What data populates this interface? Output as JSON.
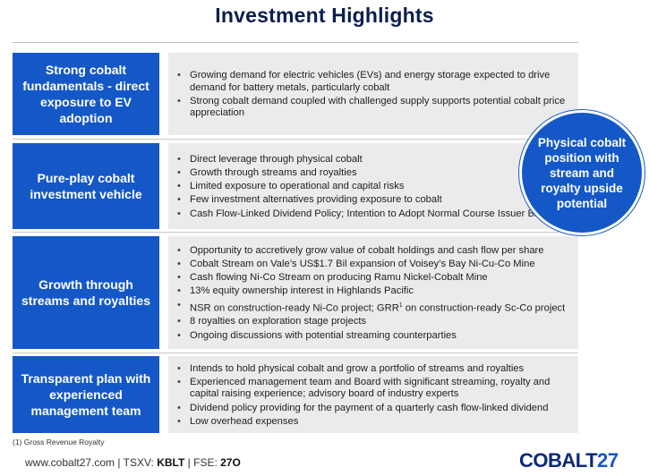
{
  "title": "Investment Highlights",
  "rows": [
    {
      "label": "Strong cobalt fundamentals - direct exposure to EV adoption",
      "bullets": [
        "Growing demand for electric vehicles (EVs) and energy storage expected to drive demand for battery metals, particularly cobalt",
        "Strong cobalt demand coupled with challenged supply supports potential cobalt price appreciation"
      ]
    },
    {
      "label": "Pure-play cobalt investment vehicle",
      "bullets": [
        "Direct leverage through physical cobalt",
        "Growth through streams and royalties",
        "Limited exposure to operational and capital risks",
        "Few investment alternatives providing exposure to cobalt",
        "Cash Flow-Linked Dividend Policy; Intention to Adopt Normal Course Issuer Bid"
      ]
    },
    {
      "label": "Growth through streams and royalties",
      "bullets": [
        "Opportunity to accretively grow value of cobalt holdings and cash flow per share",
        "Cobalt Stream on Vale’s US$1.7 Bil expansion of Voisey’s Bay Ni-Cu-Co  Mine",
        "Cash flowing Ni-Co Stream on producing Ramu Nickel-Cobalt Mine",
        "13% equity ownership interest in Highlands Pacific",
        "NSR on construction-ready Ni-Co project; GRR",
        "8 royalties on exploration stage projects",
        "Ongoing discussions with potential streaming counterparties"
      ],
      "grr_sup": "1",
      "grr_tail": " on construction-ready Sc-Co project"
    },
    {
      "label": "Transparent plan with experienced management team",
      "bullets": [
        "Intends to hold physical cobalt and grow a portfolio of streams and royalties",
        "Experienced management team and Board with significant streaming, royalty and capital raising experience; advisory board of industry experts",
        "Dividend policy providing for the payment of a quarterly cash flow-linked dividend",
        "Low overhead expenses"
      ]
    }
  ],
  "circle_text": "Physical cobalt position with stream and royalty upside potential",
  "footnote": "(1)    Gross Revenue Royalty",
  "footer": {
    "website": "www.cobalt27.com",
    "sep": "  |  ",
    "tsxv_label": "TSXV: ",
    "tsxv_value": "KBLT",
    "fse_label": "FSE: ",
    "fse_value": "27O"
  },
  "logo": {
    "word": "COBALT",
    "num": "27"
  },
  "colors": {
    "accent": "#1458c8",
    "title": "#0b1f4d",
    "panel": "#ebebeb"
  }
}
